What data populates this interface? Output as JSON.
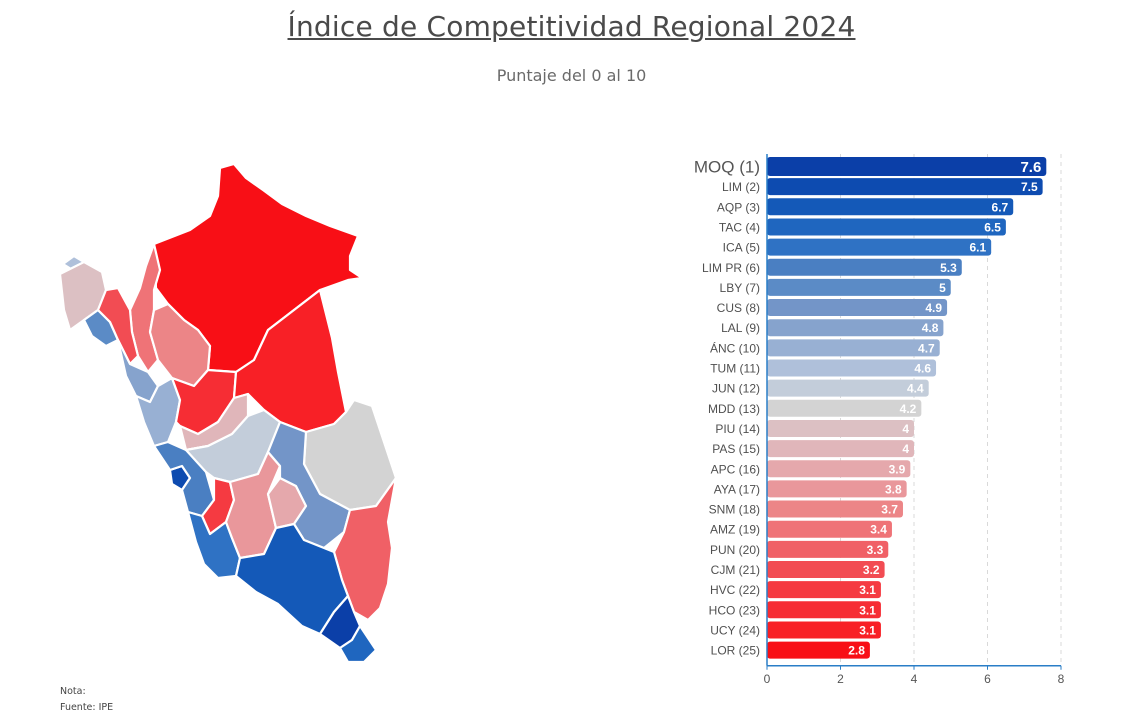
{
  "header": {
    "title": "Índice de Competitividad Regional 2024",
    "subtitle": "Puntaje del 0 al 10"
  },
  "footer": {
    "note": "Nota:",
    "source": "Fuente: IPE"
  },
  "chart_data": {
    "type": "bar",
    "orientation": "horizontal",
    "categories": [
      "MOQ (1)",
      "LIM (2)",
      "AQP (3)",
      "TAC (4)",
      "ICA (5)",
      "LIM PR (6)",
      "LBY (7)",
      "CUS (8)",
      "LAL (9)",
      "ÁNC (10)",
      "TUM (11)",
      "JUN (12)",
      "MDD (13)",
      "PIU (14)",
      "PAS (15)",
      "APC (16)",
      "AYA (17)",
      "SNM (18)",
      "AMZ (19)",
      "PUN (20)",
      "CJM (21)",
      "HVC (22)",
      "HCO (23)",
      "UCY (24)",
      "LOR (25)"
    ],
    "values": [
      7.6,
      7.5,
      6.7,
      6.5,
      6.1,
      5.3,
      5,
      4.9,
      4.8,
      4.7,
      4.6,
      4.4,
      4.2,
      4,
      4,
      3.9,
      3.8,
      3.7,
      3.4,
      3.3,
      3.2,
      3.1,
      3.1,
      3.1,
      2.8
    ],
    "value_labels": [
      "7.6",
      "7.5",
      "6.7",
      "6.5",
      "6.1",
      "5.3",
      "5",
      "4.9",
      "4.8",
      "4.7",
      "4.6",
      "4.4",
      "4.2",
      "4",
      "4",
      "3.9",
      "3.8",
      "3.7",
      "3.4",
      "3.3",
      "3.2",
      "3.1",
      "3.1",
      "3.1",
      "2.8"
    ],
    "colors": [
      "#0b3fa8",
      "#0d4bb0",
      "#1459b8",
      "#1f66bf",
      "#2f72c4",
      "#4a7fc2",
      "#5b8bc6",
      "#7395c8",
      "#86a3cd",
      "#98b0d3",
      "#afc0da",
      "#c3cdda",
      "#d3d3d3",
      "#dcc0c3",
      "#e0b6ba",
      "#e5a8ac",
      "#e9979b",
      "#ec8587",
      "#ef7377",
      "#f06066",
      "#f24c53",
      "#f53a41",
      "#f62d34",
      "#f82026",
      "#f80f16"
    ],
    "xlim": [
      0,
      8
    ],
    "xticks": [
      0,
      2,
      4,
      6,
      8
    ],
    "grid": "vertical-dashed",
    "highlight_first": true
  },
  "map": {
    "regions": [
      {
        "name": "LOR",
        "color": "#f80f16"
      },
      {
        "name": "AMZ",
        "color": "#ef7377"
      },
      {
        "name": "SNM",
        "color": "#ec8587"
      },
      {
        "name": "TUM",
        "color": "#afc0da"
      },
      {
        "name": "PIU",
        "color": "#dcc0c3"
      },
      {
        "name": "LBY",
        "color": "#5b8bc6"
      },
      {
        "name": "CJM",
        "color": "#f24c53"
      },
      {
        "name": "LAL",
        "color": "#86a3cd"
      },
      {
        "name": "ÁNC",
        "color": "#98b0d3"
      },
      {
        "name": "HCO",
        "color": "#f62d34"
      },
      {
        "name": "UCY",
        "color": "#f82026"
      },
      {
        "name": "PAS",
        "color": "#e0b6ba"
      },
      {
        "name": "LIM",
        "color": "#0d4bb0"
      },
      {
        "name": "LIM PR",
        "color": "#4a7fc2"
      },
      {
        "name": "JUN",
        "color": "#c3cdda"
      },
      {
        "name": "MDD",
        "color": "#d3d3d3"
      },
      {
        "name": "HVC",
        "color": "#f53a41"
      },
      {
        "name": "ICA",
        "color": "#2f72c4"
      },
      {
        "name": "AYA",
        "color": "#e9979b"
      },
      {
        "name": "APC",
        "color": "#e5a8ac"
      },
      {
        "name": "CUS",
        "color": "#7395c8"
      },
      {
        "name": "PUN",
        "color": "#f06066"
      },
      {
        "name": "AQP",
        "color": "#1459b8"
      },
      {
        "name": "MOQ",
        "color": "#0b3fa8"
      },
      {
        "name": "TAC",
        "color": "#1f66bf"
      }
    ]
  }
}
